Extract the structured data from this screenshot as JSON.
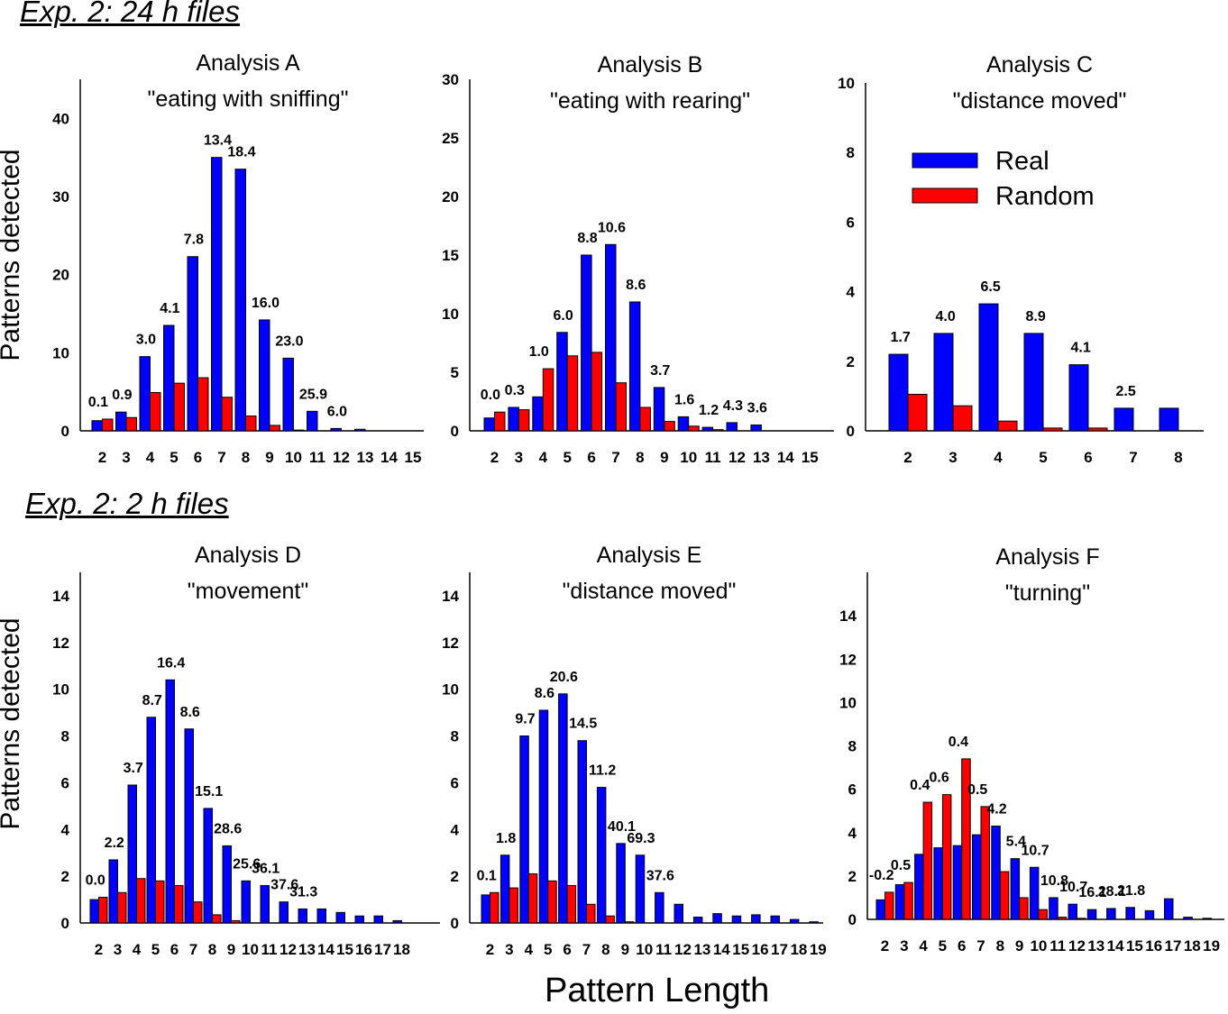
{
  "sections": {
    "top": "Exp. 2: 24 h files",
    "bottom": "Exp. 2: 2 h files"
  },
  "axes": {
    "ylabel": "Patterns detected",
    "xlabel": "Pattern Length"
  },
  "legend": {
    "entries": [
      "Real",
      "Random"
    ],
    "placement": "top-right of Analysis C",
    "colors": {
      "real": "#0000ff",
      "random": "#ff0000"
    }
  },
  "chart_data": [
    {
      "type": "bar",
      "title": "Analysis A",
      "subtitle": "\"eating with sniffing\"",
      "categories": [
        "2",
        "3",
        "4",
        "5",
        "6",
        "7",
        "8",
        "9",
        "10",
        "11",
        "12",
        "13",
        "14",
        "15"
      ],
      "ylim": [
        0,
        45
      ],
      "yticks": [
        0,
        10,
        20,
        30,
        40
      ],
      "series": [
        {
          "name": "Real",
          "values": [
            1.3,
            2.4,
            9.5,
            13.5,
            22.3,
            35,
            33.5,
            14.2,
            9.3,
            2.5,
            0.3,
            0.2,
            0,
            0
          ]
        },
        {
          "name": "Random",
          "values": [
            1.5,
            1.7,
            4.9,
            6.1,
            6.8,
            4.3,
            1.9,
            0.7,
            0.1,
            0,
            0,
            0,
            0,
            0
          ]
        }
      ],
      "labels": [
        "0.1",
        "0.9",
        "3.0",
        "4.1",
        "7.8",
        "13.4",
        "18.4",
        "16.0",
        "23.0",
        "25.9",
        "6.0",
        "",
        "",
        ""
      ]
    },
    {
      "type": "bar",
      "title": "Analysis B",
      "subtitle": "\"eating with rearing\"",
      "categories": [
        "2",
        "3",
        "4",
        "5",
        "6",
        "7",
        "8",
        "9",
        "10",
        "11",
        "12",
        "13",
        "14",
        "15"
      ],
      "ylim": [
        0,
        30
      ],
      "yticks": [
        0,
        5,
        10,
        15,
        20,
        25,
        30
      ],
      "series": [
        {
          "name": "Real",
          "values": [
            1.1,
            2,
            2.9,
            8.4,
            15,
            15.9,
            11,
            3.7,
            1.2,
            0.3,
            0.7,
            0.5,
            0,
            0
          ]
        },
        {
          "name": "Random",
          "values": [
            1.6,
            1.8,
            5.3,
            6.4,
            6.7,
            4.1,
            2,
            0.8,
            0.4,
            0.1,
            0,
            0,
            0,
            0
          ]
        }
      ],
      "labels": [
        "0.0",
        "0.3",
        "1.0",
        "6.0",
        "8.8",
        "10.6",
        "8.6",
        "3.7",
        "1.6",
        "1.2",
        "4.3",
        "3.6",
        "",
        ""
      ]
    },
    {
      "type": "bar",
      "title": "Analysis C",
      "subtitle": "\"distance moved\"",
      "categories": [
        "2",
        "3",
        "4",
        "5",
        "6",
        "7",
        "8"
      ],
      "ylim": [
        0,
        10
      ],
      "yticks": [
        0,
        2,
        4,
        6,
        8,
        10
      ],
      "series": [
        {
          "name": "Real",
          "values": [
            2.2,
            2.8,
            3.65,
            2.8,
            1.9,
            0.65,
            0.65
          ]
        },
        {
          "name": "Random",
          "values": [
            1.05,
            0.72,
            0.28,
            0.08,
            0.08,
            0,
            0
          ]
        }
      ],
      "labels": [
        "1.7",
        "4.0",
        "6.5",
        "8.9",
        "4.1",
        "2.5",
        ""
      ]
    },
    {
      "type": "bar",
      "title": "Analysis D",
      "subtitle": "\"movement\"",
      "categories": [
        "2",
        "3",
        "4",
        "5",
        "6",
        "7",
        "8",
        "9",
        "10",
        "11",
        "12",
        "13",
        "14",
        "15",
        "16",
        "17",
        "18"
      ],
      "ylim": [
        0,
        15
      ],
      "yticks": [
        0,
        2,
        4,
        6,
        8,
        10,
        12,
        14
      ],
      "series": [
        {
          "name": "Real",
          "values": [
            1,
            2.7,
            5.9,
            8.8,
            10.4,
            8.3,
            4.9,
            3.3,
            1.8,
            1.6,
            0.9,
            0.6,
            0.6,
            0.45,
            0.3,
            0.3,
            0.1
          ]
        },
        {
          "name": "Random",
          "values": [
            1.1,
            1.3,
            1.9,
            1.8,
            1.6,
            0.9,
            0.35,
            0.1,
            0,
            0,
            0,
            0,
            0,
            0,
            0,
            0,
            0
          ]
        }
      ],
      "labels": [
        "0.0",
        "2.2",
        "3.7",
        "8.7",
        "16.4",
        "8.6",
        "15.1",
        "28.6",
        "25.6",
        "36.1",
        "37.6",
        "31.3",
        "",
        "",
        "",
        "",
        ""
      ]
    },
    {
      "type": "bar",
      "title": "Analysis E",
      "subtitle": "\"distance moved\"",
      "categories": [
        "2",
        "3",
        "4",
        "5",
        "6",
        "7",
        "8",
        "9",
        "10",
        "11",
        "12",
        "13",
        "14",
        "15",
        "16",
        "17",
        "18",
        "19"
      ],
      "ylim": [
        0,
        15
      ],
      "yticks": [
        0,
        2,
        4,
        6,
        8,
        10,
        12,
        14
      ],
      "series": [
        {
          "name": "Real",
          "values": [
            1.2,
            2.9,
            8,
            9.1,
            9.8,
            7.8,
            5.8,
            3.4,
            2.9,
            1.3,
            0.8,
            0.25,
            0.4,
            0.3,
            0.35,
            0.3,
            0.15,
            0.05
          ]
        },
        {
          "name": "Random",
          "values": [
            1.3,
            1.5,
            2.1,
            1.8,
            1.6,
            0.8,
            0.3,
            0.05,
            0,
            0,
            0,
            0,
            0,
            0,
            0,
            0,
            0,
            0
          ]
        }
      ],
      "labels": [
        "0.1",
        "1.8",
        "9.7",
        "8.6",
        "20.6",
        "14.5",
        "11.2",
        "40.1",
        "69.3",
        "37.6",
        "",
        "",
        "",
        "",
        "",
        "",
        "",
        ""
      ]
    },
    {
      "type": "bar",
      "title": "Analysis F",
      "subtitle": "\"turning\"",
      "categories": [
        "2",
        "3",
        "4",
        "5",
        "6",
        "7",
        "8",
        "9",
        "10",
        "11",
        "12",
        "13",
        "14",
        "15",
        "16",
        "17",
        "18",
        "19"
      ],
      "ylim": [
        0,
        16
      ],
      "yticks": [
        0,
        2,
        4,
        6,
        8,
        10,
        12,
        14
      ],
      "series": [
        {
          "name": "Real",
          "values": [
            0.9,
            1.6,
            3,
            3.3,
            3.4,
            3.9,
            4.3,
            2.8,
            2.4,
            1,
            0.7,
            0.45,
            0.5,
            0.55,
            0.4,
            0.95,
            0.1,
            0.05
          ]
        },
        {
          "name": "Random",
          "values": [
            1.25,
            1.7,
            5.4,
            5.75,
            7.4,
            5.2,
            2.2,
            1,
            0.45,
            0.1,
            0.05,
            0,
            0,
            0,
            0,
            0,
            0,
            0
          ]
        }
      ],
      "labels": [
        "-0.2",
        "0.5",
        "0.4",
        "0.6",
        "0.4",
        "0.5",
        "4.2",
        "5.4",
        "10.7",
        "10.8",
        "10.7",
        "16.1",
        "28.1",
        "21.8",
        "",
        "",
        "",
        ""
      ]
    }
  ]
}
